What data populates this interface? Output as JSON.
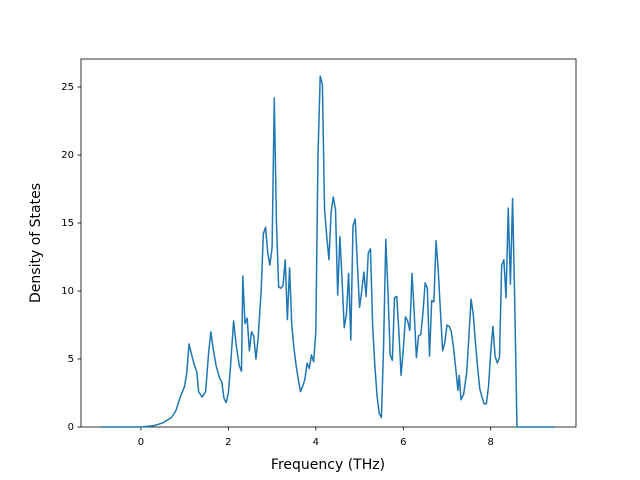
{
  "chart_data": {
    "type": "line",
    "xlabel": "Frequency (THz)",
    "ylabel": "Density of States",
    "x": [
      -0.9,
      0,
      0.3,
      0.5,
      0.7,
      0.8,
      0.9,
      1.0,
      1.05,
      1.1,
      1.2,
      1.28,
      1.32,
      1.4,
      1.48,
      1.55,
      1.6,
      1.65,
      1.72,
      1.8,
      1.85,
      1.9,
      1.95,
      2.0,
      2.05,
      2.12,
      2.18,
      2.25,
      2.3,
      2.33,
      2.38,
      2.43,
      2.48,
      2.53,
      2.58,
      2.63,
      2.68,
      2.75,
      2.8,
      2.85,
      2.9,
      2.95,
      3.0,
      3.05,
      3.1,
      3.15,
      3.2,
      3.25,
      3.3,
      3.35,
      3.4,
      3.45,
      3.5,
      3.55,
      3.6,
      3.65,
      3.7,
      3.75,
      3.8,
      3.85,
      3.9,
      3.95,
      4.0,
      4.05,
      4.1,
      4.15,
      4.2,
      4.25,
      4.3,
      4.35,
      4.4,
      4.45,
      4.5,
      4.55,
      4.6,
      4.65,
      4.7,
      4.75,
      4.8,
      4.85,
      4.9,
      4.95,
      5.0,
      5.05,
      5.1,
      5.15,
      5.2,
      5.25,
      5.3,
      5.35,
      5.4,
      5.45,
      5.5,
      5.55,
      5.6,
      5.65,
      5.7,
      5.75,
      5.8,
      5.85,
      5.9,
      5.95,
      6.0,
      6.05,
      6.1,
      6.15,
      6.2,
      6.25,
      6.3,
      6.35,
      6.4,
      6.45,
      6.5,
      6.55,
      6.6,
      6.65,
      6.7,
      6.75,
      6.8,
      6.85,
      6.9,
      6.95,
      7.0,
      7.05,
      7.1,
      7.15,
      7.2,
      7.25,
      7.28,
      7.32,
      7.38,
      7.45,
      7.5,
      7.55,
      7.6,
      7.65,
      7.7,
      7.75,
      7.8,
      7.85,
      7.9,
      7.95,
      8.0,
      8.05,
      8.1,
      8.15,
      8.2,
      8.25,
      8.3,
      8.35,
      8.4,
      8.45,
      8.5,
      8.55,
      8.6,
      9.45
    ],
    "series": [
      {
        "color": "#1f77b4",
        "values": [
          0,
          0,
          0.1,
          0.3,
          0.7,
          1.2,
          2.2,
          3.0,
          4.0,
          6.1,
          4.8,
          4.0,
          2.6,
          2.2,
          2.6,
          5.5,
          7.0,
          5.8,
          4.5,
          3.6,
          3.3,
          2.1,
          1.8,
          2.5,
          4.5,
          7.8,
          6.0,
          4.5,
          4.1,
          11.1,
          7.6,
          8.0,
          5.6,
          7.0,
          6.7,
          5.0,
          6.5,
          10.0,
          14.2,
          14.7,
          12.8,
          11.9,
          13.2,
          24.2,
          15.0,
          10.3,
          10.2,
          10.4,
          12.3,
          7.9,
          11.7,
          7.5,
          5.8,
          4.5,
          3.5,
          2.6,
          3.0,
          3.5,
          4.7,
          4.3,
          5.3,
          4.8,
          7.0,
          20,
          25.8,
          25.2,
          16,
          14,
          12.3,
          15.8,
          16.9,
          16,
          9.7,
          14,
          10.8,
          7.3,
          8.3,
          11.3,
          6.4,
          14.8,
          15.3,
          12,
          8.8,
          10,
          11.4,
          9.6,
          12.8,
          13.1,
          7.4,
          4.5,
          2.3,
          1.0,
          0.7,
          6,
          13.8,
          10,
          5.3,
          4.9,
          9.5,
          9.6,
          7,
          3.8,
          5.7,
          8.1,
          7.8,
          7.1,
          11.3,
          8.4,
          5.1,
          6.7,
          6.8,
          8.4,
          10.6,
          10.2,
          5.2,
          9.3,
          9.2,
          13.7,
          11.5,
          8.5,
          5.6,
          6.2,
          7.5,
          7.4,
          7.0,
          5.8,
          4.3,
          2.7,
          3.8,
          2.0,
          2.4,
          4.0,
          6.6,
          9.4,
          8.3,
          6.2,
          4.4,
          2.8,
          2.2,
          1.7,
          1.7,
          3.0,
          5.5,
          7.4,
          5.2,
          4.7,
          5.1,
          11.9,
          12.3,
          9.5,
          16.1,
          10.5,
          16.8,
          9,
          0,
          0
        ]
      }
    ],
    "xlim": [
      -1.37,
      9.95
    ],
    "ylim": [
      0,
      27.06
    ],
    "xticks": [
      0,
      2,
      4,
      6,
      8
    ],
    "yticks": [
      0,
      5,
      10,
      15,
      20,
      25
    ]
  }
}
